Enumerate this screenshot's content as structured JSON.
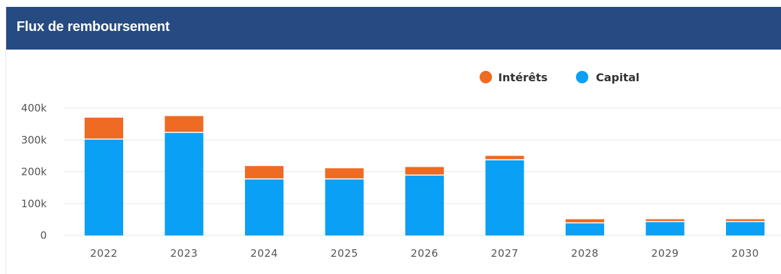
{
  "header": {
    "title": "Flux de remboursement"
  },
  "colors": {
    "header_bg": "#264a82",
    "capital": "#0aa0f5",
    "interets": "#ef6a22",
    "grid": "#e6e6e6"
  },
  "chart_data": {
    "type": "bar",
    "stacked": true,
    "categories": [
      "2022",
      "2023",
      "2024",
      "2025",
      "2026",
      "2027",
      "2028",
      "2029",
      "2030"
    ],
    "series": [
      {
        "name": "Capital",
        "color": "#0aa0f5",
        "values": [
          301000,
          322000,
          176000,
          176000,
          188000,
          236000,
          38000,
          42000,
          42000
        ]
      },
      {
        "name": "Intérêts",
        "color": "#ef6a22",
        "values": [
          69000,
          53000,
          42000,
          35000,
          27000,
          14000,
          13000,
          9000,
          9000
        ]
      }
    ],
    "legend": [
      "Intérêts",
      "Capital"
    ],
    "legend_position": "top-right",
    "ylim": [
      0,
      400000
    ],
    "yticks": [
      0,
      100000,
      200000,
      300000,
      400000
    ],
    "ytick_labels": [
      "0",
      "100k",
      "200k",
      "300k",
      "400k"
    ],
    "grid": true
  }
}
